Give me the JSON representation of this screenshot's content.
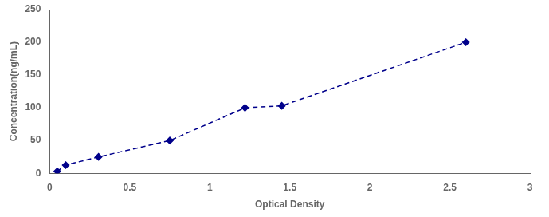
{
  "chart_data": {
    "type": "line",
    "x": [
      0.047,
      0.1,
      0.305,
      0.75,
      1.22,
      1.45,
      2.6
    ],
    "values": [
      3.0,
      12.5,
      25.0,
      50.0,
      100.0,
      103.0,
      200.0
    ],
    "color": "#00008B",
    "marker": "diamond",
    "line_style": "dashed",
    "x_label": "Optical Density",
    "y_label": "Concentration(ng/mL)",
    "xlim": [
      0,
      3
    ],
    "xticks": [
      0,
      0.5,
      1,
      1.5,
      2,
      2.5,
      3
    ],
    "ylim": [
      0,
      250
    ],
    "yticks": [
      0,
      50,
      100,
      150,
      200,
      250
    ],
    "grid": false
  }
}
